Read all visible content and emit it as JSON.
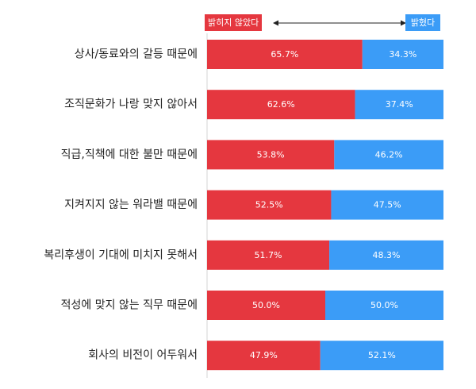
{
  "chart_data": {
    "type": "bar",
    "orientation": "horizontal",
    "stacked": true,
    "percent": true,
    "categories": [
      "상사/동료와의 갈등 때문에",
      "조직문화가 나랑 맞지 않아서",
      "직급,직책에 대한 불만 때문에",
      "지켜지지 않는 워라밸 때문에",
      "복리후생이 기대에 미치지 못해서",
      "적성에 맞지 않는 직무 때문에",
      "회사의 비전이 어두워서"
    ],
    "series": [
      {
        "name": "밝히지 않았다",
        "color": "#e5373f",
        "values": [
          65.7,
          62.6,
          53.8,
          52.5,
          51.7,
          50.0,
          47.9
        ],
        "labels": [
          "65.7%",
          "62.6%",
          "53.8%",
          "52.5%",
          "51.7%",
          "50.0%",
          "47.9%"
        ]
      },
      {
        "name": "밝혔다",
        "color": "#3b9cf7",
        "values": [
          34.3,
          37.4,
          46.2,
          47.5,
          48.3,
          50.0,
          52.1
        ],
        "labels": [
          "34.3%",
          "37.4%",
          "46.2%",
          "47.5%",
          "48.3%",
          "50.0%",
          "52.1%"
        ]
      }
    ],
    "xlim": [
      0,
      100
    ],
    "legend": "top",
    "grid": false
  }
}
